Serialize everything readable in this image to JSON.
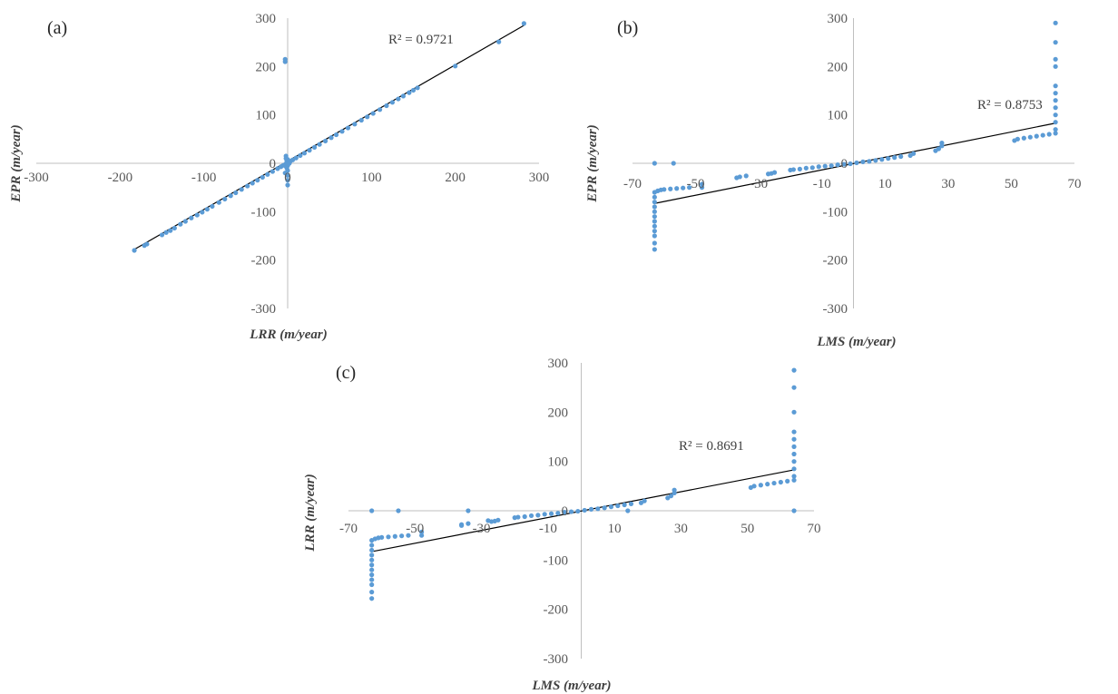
{
  "chart_data": [
    {
      "type": "scatter",
      "panel_label": "(a)",
      "xlabel": "LRR (m/year)",
      "ylabel": "EPR (m/year)",
      "r_squared_label": "R² = 0.9721",
      "xlim": [
        -300,
        300
      ],
      "ylim": [
        -300,
        300
      ],
      "xticks": [
        "-300",
        "-200",
        "-100",
        "0",
        "100",
        "200",
        "300"
      ],
      "yticks": [
        "300",
        "200",
        "100",
        "0",
        "-100",
        "-200",
        "-300"
      ],
      "color": "#5b9bd5",
      "trendline": {
        "x": [
          -185,
          282
        ],
        "y": [
          -180,
          285
        ]
      },
      "series": [
        {
          "x": [
            -183,
            -171,
            -168,
            -150,
            -145,
            -140,
            -135,
            -128,
            -122,
            -115,
            -108,
            -102,
            -96,
            -90,
            -82,
            -75,
            -68,
            -62,
            -55,
            -48,
            -42,
            -36,
            -30,
            -24,
            -18,
            -12,
            -8,
            -5,
            -2,
            0,
            3,
            6,
            10,
            15,
            20,
            26,
            32,
            38,
            45,
            52,
            58,
            65,
            72,
            80,
            88,
            95,
            102,
            110,
            118,
            125,
            132,
            138,
            145,
            150,
            155,
            200,
            252,
            282,
            -3,
            -3,
            -2,
            -2,
            -1,
            0,
            -1,
            0,
            0,
            0,
            0,
            1,
            2,
            0,
            0,
            -3,
            -3,
            0
          ],
          "y": [
            -180,
            -170,
            -167,
            -148,
            -143,
            -139,
            -134,
            -126,
            -120,
            -113,
            -107,
            -101,
            -95,
            -89,
            -81,
            -74,
            -67,
            -61,
            -54,
            -47,
            -41,
            -35,
            -29,
            -23,
            -17,
            -11,
            -7,
            -4,
            -1,
            1,
            4,
            7,
            11,
            16,
            21,
            27,
            33,
            39,
            46,
            53,
            59,
            66,
            73,
            81,
            89,
            96,
            103,
            111,
            119,
            126,
            133,
            139,
            146,
            151,
            156,
            201,
            251,
            289,
            215,
            210,
            15,
            10,
            5,
            -5,
            -10,
            -15,
            -25,
            -35,
            -45,
            2,
            0,
            -2,
            8,
            -20,
            -5,
            0
          ]
        }
      ]
    },
    {
      "type": "scatter",
      "panel_label": "(b)",
      "xlabel": "LMS (m/year)",
      "ylabel": "EPR (m/year)",
      "r_squared_label": "R² = 0.8753",
      "xlim": [
        -70,
        70
      ],
      "ylim": [
        -300,
        300
      ],
      "xticks": [
        "-70",
        "-50",
        "-30",
        "-10",
        "10",
        "30",
        "50",
        "70"
      ],
      "yticks": [
        "300",
        "200",
        "100",
        "0",
        "-100",
        "-200",
        "-300"
      ],
      "color": "#5b9bd5",
      "trendline": {
        "x": [
          -63,
          64
        ],
        "y": [
          -83,
          83
        ]
      },
      "series": [
        {
          "x": [
            -63,
            -63,
            -63,
            -63,
            -63,
            -63,
            -63,
            -63,
            -63,
            -63,
            -63,
            -63,
            -62,
            -61,
            -60,
            -58,
            -56,
            -54,
            -52,
            -63,
            -57,
            -48,
            -48,
            -37,
            -36,
            -34,
            -27,
            -26,
            -25,
            -20,
            -19,
            -17,
            -15,
            -13,
            -11,
            -9,
            -7,
            -5,
            -3,
            -1,
            1,
            3,
            5,
            7,
            9,
            11,
            13,
            15,
            18,
            19,
            26,
            27,
            28,
            28,
            51,
            52,
            54,
            56,
            58,
            60,
            62,
            64,
            64,
            64,
            64,
            64,
            64,
            64,
            64,
            64,
            64,
            64,
            64
          ],
          "y": [
            -60,
            -70,
            -80,
            -90,
            -100,
            -110,
            -120,
            -130,
            -140,
            -150,
            -165,
            -178,
            -57,
            -55,
            -54,
            -53,
            -52,
            -51,
            -50,
            0,
            0,
            -50,
            -43,
            -30,
            -28,
            -26,
            -22,
            -21,
            -19,
            -14,
            -13,
            -12,
            -10,
            -9,
            -7,
            -6,
            -5,
            -3,
            -2,
            -1,
            1,
            3,
            4,
            6,
            8,
            10,
            12,
            14,
            16,
            20,
            26,
            30,
            36,
            42,
            47,
            50,
            52,
            54,
            56,
            58,
            60,
            62,
            70,
            85,
            100,
            115,
            130,
            145,
            160,
            200,
            215,
            250,
            290
          ]
        }
      ]
    },
    {
      "type": "scatter",
      "panel_label": "(c)",
      "xlabel": "LMS (m/year)",
      "ylabel": "LRR (m/year)",
      "r_squared_label": "R² = 0.8691",
      "xlim": [
        -70,
        70
      ],
      "ylim": [
        -300,
        300
      ],
      "xticks": [
        "-70",
        "-50",
        "-30",
        "-10",
        "10",
        "30",
        "50",
        "70"
      ],
      "yticks": [
        "300",
        "200",
        "100",
        "0",
        "-100",
        "-200",
        "-300"
      ],
      "color": "#5b9bd5",
      "trendline": {
        "x": [
          -63,
          64
        ],
        "y": [
          -83,
          83
        ]
      },
      "series": [
        {
          "x": [
            -63,
            -63,
            -63,
            -63,
            -63,
            -63,
            -63,
            -63,
            -63,
            -63,
            -63,
            -63,
            -62,
            -61,
            -60,
            -58,
            -56,
            -54,
            -52,
            -63,
            -55,
            -48,
            -48,
            -36,
            -36,
            -34,
            -34,
            -27,
            -26,
            -25,
            -28,
            -20,
            -19,
            -17,
            -15,
            -13,
            -11,
            -9,
            -7,
            -5,
            -3,
            -1,
            1,
            3,
            5,
            7,
            9,
            11,
            13,
            15,
            18,
            19,
            26,
            27,
            28,
            28,
            51,
            52,
            54,
            56,
            58,
            60,
            62,
            64,
            64,
            64,
            64,
            64,
            64,
            64,
            64,
            64,
            64,
            64,
            64,
            14
          ],
          "y": [
            -60,
            -70,
            -80,
            -90,
            -100,
            -110,
            -120,
            -130,
            -140,
            -150,
            -165,
            -178,
            -57,
            -55,
            -54,
            -53,
            -52,
            -51,
            -50,
            0,
            0,
            -50,
            -43,
            -30,
            -28,
            -26,
            0,
            -22,
            -21,
            -19,
            -20,
            -14,
            -13,
            -12,
            -10,
            -9,
            -7,
            -6,
            -5,
            -3,
            -2,
            -1,
            1,
            3,
            4,
            6,
            8,
            10,
            12,
            14,
            16,
            20,
            26,
            30,
            36,
            42,
            47,
            50,
            52,
            54,
            56,
            58,
            60,
            62,
            70,
            85,
            100,
            115,
            130,
            145,
            160,
            200,
            250,
            285,
            0,
            0
          ]
        }
      ]
    }
  ]
}
